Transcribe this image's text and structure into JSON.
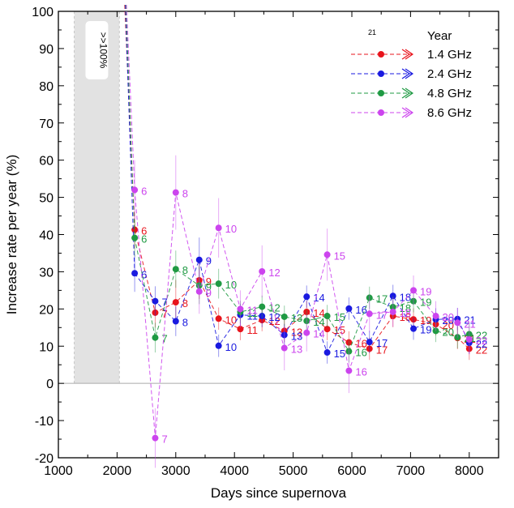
{
  "chart_data": {
    "type": "line",
    "xlabel": "Days since supernova",
    "ylabel": "Increase rate per year (%)",
    "xlim": [
      1000,
      8500
    ],
    "ylim": [
      -20,
      100
    ],
    "x_ticks": [
      1000,
      2000,
      3000,
      4000,
      5000,
      6000,
      7000,
      8000
    ],
    "y_ticks": [
      -20,
      -10,
      0,
      10,
      20,
      30,
      40,
      50,
      60,
      70,
      80,
      90,
      100
    ],
    "x_tick_labels": [
      "1000",
      "2000",
      "3000",
      "4000",
      "5000",
      "6000",
      "7000",
      "8000"
    ],
    "y_tick_labels": [
      "-20",
      "-10",
      "0",
      "10",
      "20",
      "30",
      "40",
      "50",
      "60",
      "70",
      "80",
      "90",
      "100"
    ],
    "zero_line": 0,
    "shaded_region": {
      "x": [
        1270,
        2040
      ],
      "label": ">>100%"
    },
    "legend": {
      "placement": "top-right",
      "header_superscript": "21",
      "header": "Year"
    },
    "series": [
      {
        "name": "1.4 GHz",
        "color": "#e8141c",
        "x": [
          2300,
          2650,
          3000,
          3400,
          3730,
          4100,
          4470,
          4850,
          5230,
          5580,
          5950,
          6300,
          6700,
          7050,
          7430,
          7800,
          8000
        ],
        "y": [
          41.3,
          19.0,
          21.8,
          27.7,
          17.4,
          14.6,
          17.0,
          14.1,
          19.2,
          14.6,
          11.0,
          9.3,
          18.1,
          17.2,
          15.9,
          12.2,
          9.3
        ],
        "err": [
          5,
          4,
          6,
          5,
          3,
          3,
          3,
          3,
          3,
          3,
          3,
          3,
          3,
          3,
          3,
          3,
          3
        ],
        "labels": [
          "6",
          "7",
          "8",
          "9",
          "10",
          "11",
          "12",
          "13",
          "14",
          "15",
          "16",
          "17",
          "18",
          "19",
          "20",
          "21",
          "22"
        ]
      },
      {
        "name": "2.4 GHz",
        "color": "#1a1ae0",
        "x": [
          2300,
          2650,
          3000,
          3400,
          3730,
          4100,
          4470,
          4850,
          5230,
          5580,
          5950,
          6300,
          6700,
          7050,
          7430,
          7800,
          8000
        ],
        "y": [
          29.6,
          22.1,
          16.7,
          33.2,
          10.1,
          18.4,
          18.1,
          13.0,
          23.3,
          8.3,
          20.1,
          11.1,
          23.5,
          14.7,
          17.2,
          17.3,
          10.9
        ],
        "err": [
          5,
          4,
          4,
          6,
          3,
          3,
          3,
          3,
          3,
          3,
          3,
          3,
          3,
          3,
          3,
          3,
          3
        ],
        "labels": [
          "6",
          "7",
          "8",
          "9",
          "10",
          "11",
          "12",
          "13",
          "14",
          "15",
          "16",
          "17",
          "18",
          "19",
          "20",
          "21",
          "22"
        ]
      },
      {
        "name": "4.8 GHz",
        "color": "#1f9a43",
        "x": [
          2300,
          2650,
          3000,
          3400,
          3730,
          4100,
          4470,
          4850,
          5230,
          5580,
          5950,
          6300,
          6700,
          7050,
          7430,
          7800,
          8000
        ],
        "y": [
          39.1,
          12.3,
          30.7,
          26.3,
          26.8,
          19.2,
          20.6,
          17.9,
          16.8,
          18.1,
          8.6,
          23.0,
          20.5,
          22.1,
          14.1,
          12.4,
          13.2
        ],
        "err": [
          5,
          4,
          5,
          5,
          4,
          3,
          3,
          3,
          3,
          3,
          3,
          3,
          3,
          3,
          3,
          3,
          3
        ],
        "labels": [
          "6",
          "7",
          "8",
          "9",
          "10",
          "11",
          "12",
          "13",
          "14",
          "15",
          "16",
          "17",
          "18",
          "19",
          "20",
          "21",
          "22"
        ]
      },
      {
        "name": "8.6 GHz",
        "color": "#cc44ee",
        "x": [
          2300,
          2650,
          3000,
          3400,
          3730,
          4100,
          4470,
          4850,
          5230,
          5580,
          5950,
          6300,
          6700,
          7050,
          7430,
          7800,
          8000
        ],
        "y": [
          52.0,
          -14.7,
          51.3,
          24.7,
          41.8,
          20.0,
          30.1,
          9.5,
          13.6,
          34.6,
          3.4,
          18.7,
          19.2,
          25.0,
          18.1,
          16.3,
          11.8
        ],
        "err": [
          8,
          8,
          10,
          6,
          8,
          5,
          7,
          6,
          5,
          7,
          6,
          5,
          4,
          4,
          4,
          4,
          4
        ],
        "labels": [
          "6",
          "7",
          "8",
          "9",
          "10",
          "11",
          "12",
          "13",
          "14",
          "15",
          "16",
          "17",
          "18",
          "19",
          "20",
          "21",
          "22"
        ]
      }
    ]
  }
}
